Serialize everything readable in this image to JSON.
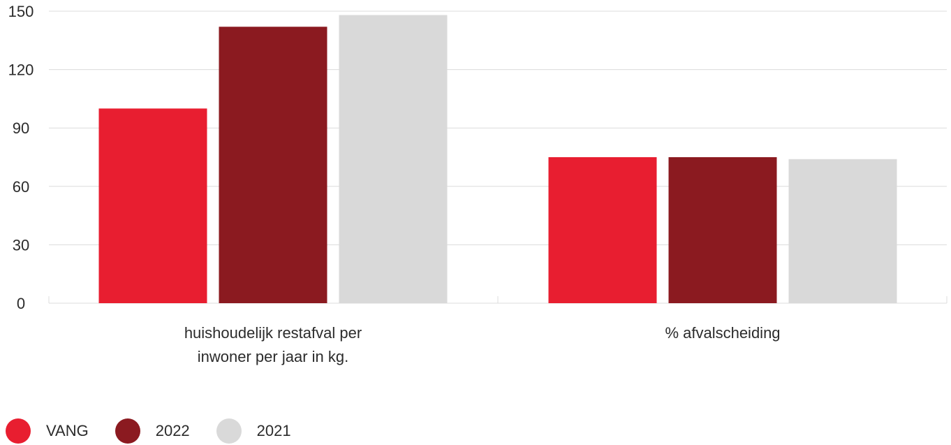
{
  "chart_data": {
    "type": "bar",
    "title": "",
    "xlabel": "",
    "ylabel": "",
    "ylim": [
      0,
      150
    ],
    "yticks": [
      0,
      30,
      60,
      90,
      120,
      150
    ],
    "grid": true,
    "legend_position": "bottom-left",
    "categories": [
      [
        "huishoudelijk restafval per",
        "inwoner per jaar in kg."
      ],
      [
        "% afvalscheiding"
      ]
    ],
    "series": [
      {
        "name": "VANG",
        "color": "#E81E30",
        "values": [
          100,
          75
        ]
      },
      {
        "name": "2022",
        "color": "#8B1A20",
        "values": [
          142,
          75
        ]
      },
      {
        "name": "2021",
        "color": "#D9D9D9",
        "values": [
          148,
          74
        ]
      }
    ]
  }
}
